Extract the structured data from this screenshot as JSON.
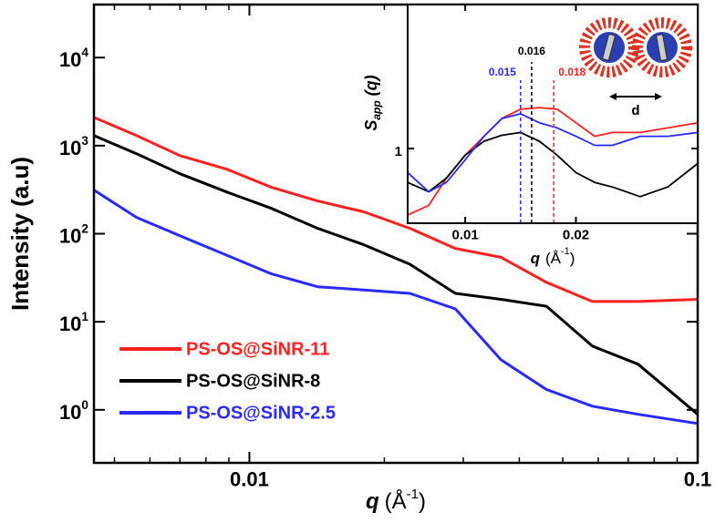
{
  "chart_data": [
    {
      "type": "line",
      "xscale": "log",
      "yscale": "log",
      "x_label": {
        "text": "q",
        "unit": "(Å",
        "sup": "-1",
        "close": ")"
      },
      "y_label": "Intensity (a.u)",
      "xlim": [
        0.0045,
        0.1
      ],
      "ylim": [
        0.25,
        40000
      ],
      "xticks": [
        0.01,
        0.1
      ],
      "xminorticks": [
        0.005,
        0.006,
        0.007,
        0.008,
        0.009,
        0.02,
        0.03,
        0.04,
        0.05,
        0.06,
        0.07,
        0.08,
        0.09
      ],
      "yticks": [
        {
          "value": 1,
          "label": "10",
          "exponent": "0"
        },
        {
          "value": 10,
          "label": "10",
          "exponent": "1"
        },
        {
          "value": 100,
          "label": "10",
          "exponent": "2"
        },
        {
          "value": 1000,
          "label": "10",
          "exponent": "3"
        },
        {
          "value": 10000,
          "label": "10",
          "exponent": "4"
        }
      ],
      "legend": "lower left",
      "x": [
        0.0045,
        0.0056,
        0.007,
        0.0089,
        0.0112,
        0.0142,
        0.018,
        0.0228,
        0.0288,
        0.0364,
        0.046,
        0.0582,
        0.0736,
        0.1
      ],
      "series": [
        {
          "name": "PS-OS@SiNR-11",
          "color": "#ff2020",
          "values": [
            2090,
            1300,
            770,
            540,
            336,
            235,
            177,
            115,
            68,
            54,
            28,
            17,
            17,
            18
          ]
        },
        {
          "name": "PS-OS@SiNR-8",
          "color": "#000000",
          "values": [
            1300,
            810,
            480,
            298,
            194,
            115,
            75,
            45,
            21,
            18,
            15,
            5.3,
            3.3,
            0.89
          ]
        },
        {
          "name": "PS-OS@SiNR-2.5",
          "color": "#2a2aff",
          "values": [
            313,
            153,
            95,
            57,
            35,
            25,
            23,
            21,
            14,
            3.7,
            1.7,
            1.1,
            0.89,
            0.7
          ]
        }
      ]
    },
    {
      "type": "line",
      "xscale": "linear",
      "yscale": "log",
      "x_label": {
        "text": "q",
        "unit": "(Å",
        "sup": "-1",
        "close": ")"
      },
      "y_label": {
        "text": "S",
        "sub": "app",
        "rest": "(q)"
      },
      "xlim": [
        0.0048,
        0.031
      ],
      "ylim": [
        0.5,
        3.8
      ],
      "xticks": [
        0.01,
        0.02
      ],
      "yticks": [
        1
      ],
      "x": [
        0.0048,
        0.0067,
        0.0083,
        0.01,
        0.0117,
        0.0133,
        0.015,
        0.0167,
        0.0183,
        0.02,
        0.0217,
        0.0233,
        0.0258,
        0.0283,
        0.031
      ],
      "series": [
        {
          "color": "#ff2020",
          "values": [
            0.54,
            0.59,
            0.76,
            0.94,
            1.12,
            1.32,
            1.44,
            1.46,
            1.44,
            1.27,
            1.12,
            1.16,
            1.16,
            1.21,
            1.27
          ]
        },
        {
          "color": "#000000",
          "values": [
            0.73,
            0.67,
            0.76,
            0.94,
            1.07,
            1.13,
            1.16,
            1.07,
            0.94,
            0.8,
            0.73,
            0.7,
            0.64,
            0.7,
            0.87
          ]
        },
        {
          "color": "#2a2aff",
          "values": [
            0.8,
            0.67,
            0.73,
            0.9,
            1.12,
            1.32,
            1.38,
            1.27,
            1.21,
            1.12,
            1.03,
            1.03,
            1.12,
            1.12,
            1.16
          ]
        }
      ],
      "annotations": [
        {
          "text": "0.015",
          "x": 0.015,
          "color": "#2a2aff"
        },
        {
          "text": "0.016",
          "x": 0.016,
          "color": "#000000"
        },
        {
          "text": "0.018",
          "x": 0.018,
          "color": "#ff2020"
        }
      ],
      "diagram_label": "d"
    }
  ]
}
